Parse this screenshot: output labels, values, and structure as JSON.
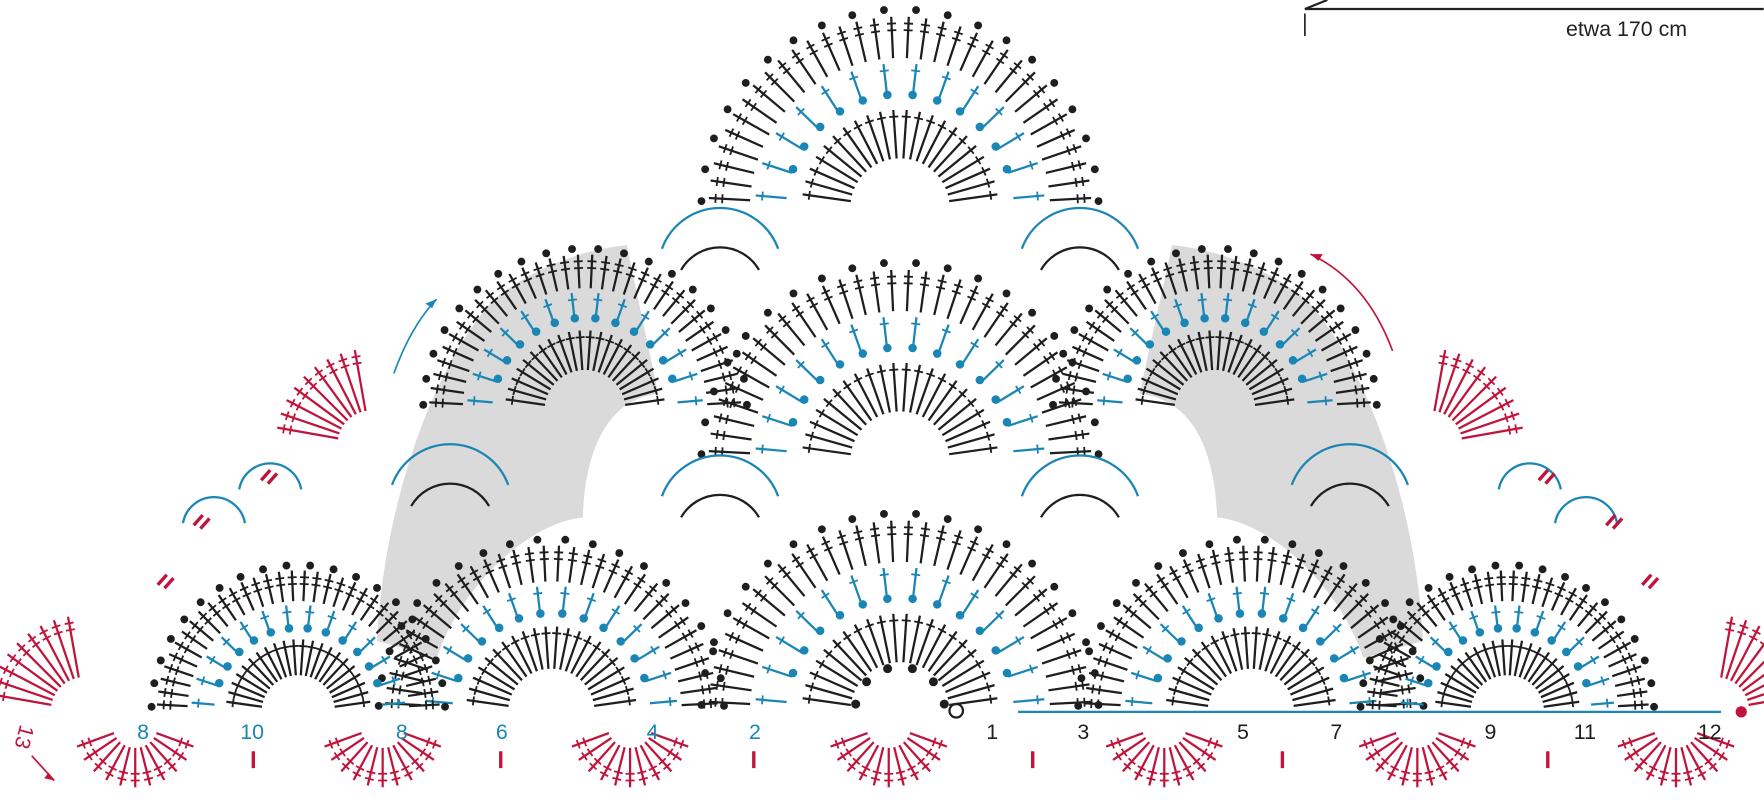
{
  "dimension_label": "etwa 170 cm",
  "row_numbers_left": [
    "8",
    "10",
    "8",
    "6",
    "4",
    "2"
  ],
  "row_numbers_right": [
    "1",
    "3",
    "5",
    "7",
    "9",
    "11",
    "12"
  ],
  "corner_label": "13"
}
